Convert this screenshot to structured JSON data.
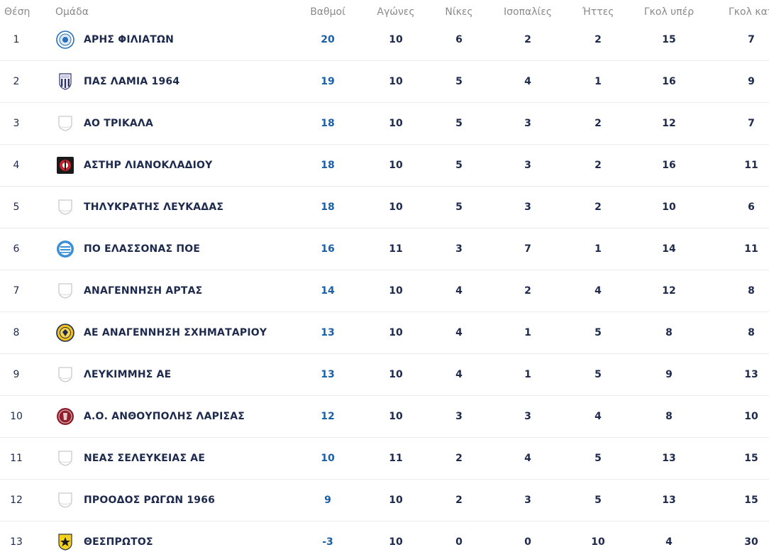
{
  "headers": {
    "position": "Θέση",
    "team": "Ομάδα",
    "points": "Βαθμοί",
    "played": "Αγώνες",
    "wins": "Νίκες",
    "draws": "Ισοπαλίες",
    "losses": "Ήττες",
    "goals_for": "Γκολ υπέρ",
    "goals_against": "Γκολ κατά"
  },
  "colors": {
    "points_blue": "#1a5fa8",
    "text_navy": "#1d2a4d",
    "header_gray": "#8a8a8a"
  },
  "rows": [
    {
      "position": "1",
      "team": "ΑΡΗΣ ΦΙΛΙΑΤΩΝ",
      "logo": "aris-filiaton-crest",
      "points": "20",
      "played": "10",
      "wins": "6",
      "draws": "2",
      "losses": "2",
      "goals_for": "15",
      "goals_against": "7"
    },
    {
      "position": "2",
      "team": "ΠΑΣ ΛΑΜΙΑ 1964",
      "logo": "pas-lamia-crest",
      "points": "19",
      "played": "10",
      "wins": "5",
      "draws": "4",
      "losses": "1",
      "goals_for": "16",
      "goals_against": "9"
    },
    {
      "position": "3",
      "team": "ΑΟ ΤΡΙΚΑΛΑ",
      "logo": "placeholder-shield",
      "points": "18",
      "played": "10",
      "wins": "5",
      "draws": "3",
      "losses": "2",
      "goals_for": "12",
      "goals_against": "7"
    },
    {
      "position": "4",
      "team": "ΑΣΤΗΡ ΛΙΑΝΟΚΛΑΔΙΟΥ",
      "logo": "astir-crest",
      "points": "18",
      "played": "10",
      "wins": "5",
      "draws": "3",
      "losses": "2",
      "goals_for": "16",
      "goals_against": "11"
    },
    {
      "position": "5",
      "team": "ΤΗΛΥΚΡΑΤΗΣ ΛΕΥΚΑΔΑΣ",
      "logo": "placeholder-shield",
      "points": "18",
      "played": "10",
      "wins": "5",
      "draws": "3",
      "losses": "2",
      "goals_for": "10",
      "goals_against": "6"
    },
    {
      "position": "6",
      "team": "ΠΟ ΕΛΑΣΣΟΝΑΣ ΠΟΕ",
      "logo": "poe-crest",
      "points": "16",
      "played": "11",
      "wins": "3",
      "draws": "7",
      "losses": "1",
      "goals_for": "14",
      "goals_against": "11"
    },
    {
      "position": "7",
      "team": "ΑΝΑΓΕΝΝΗΣΗ ΑΡΤΑΣ",
      "logo": "placeholder-shield",
      "points": "14",
      "played": "10",
      "wins": "4",
      "draws": "2",
      "losses": "4",
      "goals_for": "12",
      "goals_against": "8"
    },
    {
      "position": "8",
      "team": "ΑΕ ΑΝΑΓΕΝΝΗΣΗ ΣΧΗΜΑΤΑΡΙΟΥ",
      "logo": "anagennisi-schimatariou-crest",
      "points": "13",
      "played": "10",
      "wins": "4",
      "draws": "1",
      "losses": "5",
      "goals_for": "8",
      "goals_against": "8"
    },
    {
      "position": "9",
      "team": "ΛΕΥΚΙΜΜΗΣ ΑΕ",
      "logo": "placeholder-shield",
      "points": "13",
      "played": "10",
      "wins": "4",
      "draws": "1",
      "losses": "5",
      "goals_for": "9",
      "goals_against": "13"
    },
    {
      "position": "10",
      "team": "Α.Ο. ΑΝΘΟΥΠΟΛΗΣ ΛΑΡΙΣΑΣ",
      "logo": "anthoupolis-crest",
      "points": "12",
      "played": "10",
      "wins": "3",
      "draws": "3",
      "losses": "4",
      "goals_for": "8",
      "goals_against": "10"
    },
    {
      "position": "11",
      "team": "ΝΕΑΣ ΣΕΛΕΥΚΕΙΑΣ ΑΕ",
      "logo": "placeholder-shield",
      "points": "10",
      "played": "11",
      "wins": "2",
      "draws": "4",
      "losses": "5",
      "goals_for": "13",
      "goals_against": "15"
    },
    {
      "position": "12",
      "team": "ΠΡΟΟΔΟΣ ΡΩΓΩΝ 1966",
      "logo": "placeholder-shield",
      "points": "9",
      "played": "10",
      "wins": "2",
      "draws": "3",
      "losses": "5",
      "goals_for": "13",
      "goals_against": "15"
    },
    {
      "position": "13",
      "team": "ΘΕΣΠΡΩΤΟΣ",
      "logo": "thesprotos-crest",
      "points": "-3",
      "played": "10",
      "wins": "0",
      "draws": "0",
      "losses": "10",
      "goals_for": "4",
      "goals_against": "30"
    }
  ]
}
